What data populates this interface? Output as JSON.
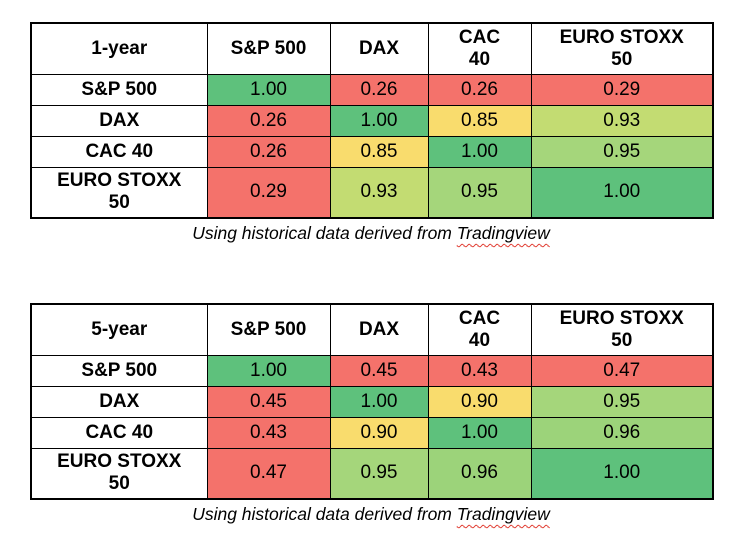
{
  "colors": {
    "corr_low_red": "#F4726B",
    "corr_mid_yellow": "#F9DC6D",
    "corr_high_yellow_green": "#C3DC72",
    "corr_high_light_green": "#A5D67B",
    "corr_high_light_green2": "#9CD37A",
    "corr_max_green": "#5EC17C",
    "squiggle_red": "#e03a2f",
    "grid_black": "#000000",
    "background": "#ffffff"
  },
  "tables": [
    {
      "corner_label": "1-year",
      "columns": [
        "S&P 500",
        "DAX",
        "CAC 40",
        "EURO STOXX 50"
      ],
      "rows": [
        {
          "label": "S&P 500",
          "values": [
            "1.00",
            "0.26",
            "0.26",
            "0.29"
          ],
          "colors": [
            "#5EC17C",
            "#F4726B",
            "#F4726B",
            "#F4726B"
          ]
        },
        {
          "label": "DAX",
          "values": [
            "0.26",
            "1.00",
            "0.85",
            "0.93"
          ],
          "colors": [
            "#F4726B",
            "#5EC17C",
            "#F9DC6D",
            "#C3DC72"
          ]
        },
        {
          "label": "CAC 40",
          "values": [
            "0.26",
            "0.85",
            "1.00",
            "0.95"
          ],
          "colors": [
            "#F4726B",
            "#F9DC6D",
            "#5EC17C",
            "#A5D67B"
          ]
        },
        {
          "label": "EURO STOXX 50",
          "values": [
            "0.29",
            "0.93",
            "0.95",
            "1.00"
          ],
          "colors": [
            "#F4726B",
            "#C3DC72",
            "#A5D67B",
            "#5EC17C"
          ]
        }
      ],
      "caption": {
        "text": "Using historical data derived from ",
        "source_word": "Tradingview"
      }
    },
    {
      "corner_label": "5-year",
      "columns": [
        "S&P 500",
        "DAX",
        "CAC 40",
        "EURO STOXX 50"
      ],
      "rows": [
        {
          "label": "S&P 500",
          "values": [
            "1.00",
            "0.45",
            "0.43",
            "0.47"
          ],
          "colors": [
            "#5EC17C",
            "#F4726B",
            "#F4726B",
            "#F4726B"
          ]
        },
        {
          "label": "DAX",
          "values": [
            "0.45",
            "1.00",
            "0.90",
            "0.95"
          ],
          "colors": [
            "#F4726B",
            "#5EC17C",
            "#F9DC6D",
            "#A5D67B"
          ]
        },
        {
          "label": "CAC 40",
          "values": [
            "0.43",
            "0.90",
            "1.00",
            "0.96"
          ],
          "colors": [
            "#F4726B",
            "#F9DC6D",
            "#5EC17C",
            "#9CD37A"
          ]
        },
        {
          "label": "EURO STOXX 50",
          "values": [
            "0.47",
            "0.95",
            "0.96",
            "1.00"
          ],
          "colors": [
            "#F4726B",
            "#A5D67B",
            "#9CD37A",
            "#5EC17C"
          ]
        }
      ],
      "caption": {
        "text": "Using historical data derived from ",
        "source_word": "Tradingview"
      }
    }
  ],
  "chart_data": [
    {
      "type": "heatmap",
      "title": "1-year",
      "categories": [
        "S&P 500",
        "DAX",
        "CAC 40",
        "EURO STOXX 50"
      ],
      "matrix": [
        [
          1.0,
          0.26,
          0.26,
          0.29
        ],
        [
          0.26,
          1.0,
          0.85,
          0.93
        ],
        [
          0.26,
          0.85,
          1.0,
          0.95
        ],
        [
          0.29,
          0.93,
          0.95,
          1.0
        ]
      ],
      "value_range": [
        0,
        1
      ],
      "color_scale": "red-yellow-green",
      "caption": "Using historical data derived from Tradingview"
    },
    {
      "type": "heatmap",
      "title": "5-year",
      "categories": [
        "S&P 500",
        "DAX",
        "CAC 40",
        "EURO STOXX 50"
      ],
      "matrix": [
        [
          1.0,
          0.45,
          0.43,
          0.47
        ],
        [
          0.45,
          1.0,
          0.9,
          0.95
        ],
        [
          0.43,
          0.9,
          1.0,
          0.96
        ],
        [
          0.47,
          0.95,
          0.96,
          1.0
        ]
      ],
      "value_range": [
        0,
        1
      ],
      "color_scale": "red-yellow-green",
      "caption": "Using historical data derived from Tradingview"
    }
  ]
}
